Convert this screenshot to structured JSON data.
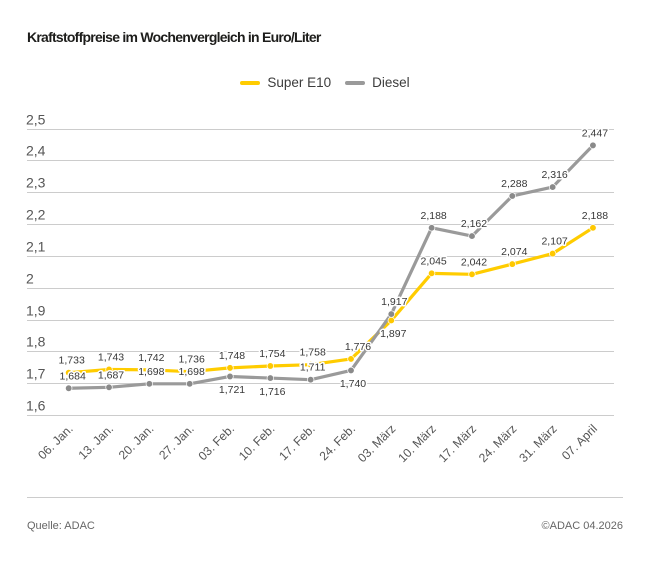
{
  "header": {
    "title": "Kraftstoffpreise im Wochenvergleich in Euro/Liter"
  },
  "footer": {
    "source": "Quelle: ADAC",
    "copyright": "©ADAC 04.2026"
  },
  "colors": {
    "super_e10": "#FFCC00",
    "diesel_line": "#9A9A9A",
    "diesel_marker": "#8A8A8A",
    "gridline": "#cccccc",
    "axis_label": "#565656",
    "data_label": "#383838"
  },
  "chart_data": {
    "type": "line",
    "title": "Kraftstoffpreise im Wochenvergleich in Euro/Liter",
    "xlabel": "",
    "ylabel": "",
    "ylim": [
      1.6,
      2.5
    ],
    "grid": "horizontal",
    "legend_position": "top-center",
    "categories": [
      "06. Jan.",
      "13. Jan.",
      "20. Jan.",
      "27. Jan.",
      "03. Feb.",
      "10. Feb.",
      "17. Feb.",
      "24. Feb.",
      "03. März",
      "10. März",
      "17. März",
      "24. März",
      "31. März",
      "07. April"
    ],
    "y_ticks": [
      {
        "value": 1.6,
        "label": "1,6"
      },
      {
        "value": 1.7,
        "label": "1,7"
      },
      {
        "value": 1.8,
        "label": "1,8"
      },
      {
        "value": 1.9,
        "label": "1,9"
      },
      {
        "value": 2.0,
        "label": "2"
      },
      {
        "value": 2.1,
        "label": "2,1"
      },
      {
        "value": 2.2,
        "label": "2,2"
      },
      {
        "value": 2.3,
        "label": "2,3"
      },
      {
        "value": 2.4,
        "label": "2,4"
      },
      {
        "value": 2.5,
        "label": "2,5"
      }
    ],
    "series": [
      {
        "name": "Super E10",
        "color": "#FFCC00",
        "marker_color": "#FFC800",
        "values": [
          1.733,
          1.743,
          1.742,
          1.736,
          1.748,
          1.754,
          1.758,
          1.776,
          1.897,
          2.045,
          2.042,
          2.074,
          2.107,
          2.188
        ],
        "labels": [
          "1,733",
          "1,743",
          "1,742",
          "1,736",
          "1,748",
          "1,754",
          "1,758",
          "1,776",
          "1,897",
          "2,045",
          "2,042",
          "2,074",
          "2,107",
          "2,188"
        ],
        "label_below": [
          8
        ],
        "label_dx": {
          "0": 1,
          "7": 5
        }
      },
      {
        "name": "Diesel",
        "color": "#9A9A9A",
        "marker_color": "#8A8A8A",
        "values": [
          1.684,
          1.687,
          1.698,
          1.698,
          1.721,
          1.716,
          1.711,
          1.74,
          1.917,
          2.188,
          2.162,
          2.288,
          2.316,
          2.447
        ],
        "labels": [
          "1,684",
          "1,687",
          "1,698",
          "1,698",
          "1,721",
          "1,716",
          "1,711",
          "1,740",
          "1,917",
          "2,188",
          "2,162",
          "2,288",
          "2,316",
          "2,447"
        ],
        "label_below": [
          4,
          5,
          7
        ],
        "label_dx": {
          "0": 2,
          "8": 1
        }
      }
    ]
  }
}
